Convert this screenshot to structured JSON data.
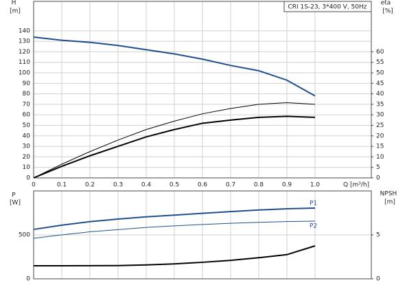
{
  "chart_data": [
    {
      "type": "line",
      "title": "CRI 1S-23, 3*400 V, 50Hz",
      "y_label": "H",
      "y_unit": "[m]",
      "y2_label": "eta",
      "y2_unit": "[%]",
      "x_label": "Q [m³/h]",
      "x": [
        0,
        0.1,
        0.2,
        0.3,
        0.4,
        0.5,
        0.6,
        0.7,
        0.8,
        0.9,
        1.0
      ],
      "xlim": [
        0,
        1.2
      ],
      "xticks": [
        0,
        0.1,
        0.2,
        0.3,
        0.4,
        0.5,
        0.6,
        0.7,
        0.8,
        0.9,
        {
          "value": 1,
          "label": "1.0"
        }
      ],
      "ylim": [
        0,
        168
      ],
      "yticks": [
        0,
        10,
        20,
        30,
        40,
        50,
        60,
        70,
        80,
        90,
        100,
        110,
        120,
        130,
        140
      ],
      "y2lim": [
        0,
        84
      ],
      "y2ticks": [
        0,
        5,
        10,
        15,
        20,
        25,
        30,
        35,
        40,
        45,
        50,
        55,
        60
      ],
      "grid": true,
      "series": [
        {
          "color": "#1f4e8c",
          "width": 2,
          "values": [
            134,
            131,
            129,
            126,
            122,
            118,
            113,
            107,
            102,
            93,
            78
          ]
        },
        {
          "color": "#000000",
          "width": 1,
          "axis": "y2",
          "values": [
            0,
            6.5,
            12.5,
            18,
            23,
            27,
            30.5,
            33,
            35,
            35.8,
            35
          ]
        },
        {
          "color": "#000000",
          "width": 2,
          "axis": "y2",
          "values": [
            0,
            5.5,
            10.5,
            15,
            19.5,
            23,
            26,
            27.5,
            28.8,
            29.3,
            28.8
          ]
        }
      ]
    },
    {
      "type": "line",
      "y_label": "P",
      "y_unit": "[W]",
      "y2_label": "NPSH",
      "y2_unit": "[m]",
      "x": [
        0,
        0.1,
        0.2,
        0.3,
        0.4,
        0.5,
        0.6,
        0.7,
        0.8,
        0.9,
        1.0
      ],
      "xlim": [
        0,
        1.2
      ],
      "xticks": [
        0,
        0.1,
        0.2,
        0.3,
        0.4,
        0.5,
        0.6,
        0.7,
        0.8,
        0.9,
        1
      ],
      "ylim": [
        0,
        1000
      ],
      "yticks": [
        0,
        500
      ],
      "y2lim": [
        0,
        10
      ],
      "y2ticks": [
        0,
        5
      ],
      "grid": true,
      "series": [
        {
          "name": "P1",
          "color": "#1f4e8c",
          "width": 2,
          "values": [
            562,
            610,
            650,
            680,
            705,
            725,
            745,
            765,
            783,
            797,
            805
          ]
        },
        {
          "name": "P2",
          "color": "#1f4e8c",
          "width": 1,
          "values": [
            461,
            500,
            535,
            560,
            585,
            603,
            618,
            632,
            643,
            651,
            656
          ]
        },
        {
          "color": "#000000",
          "width": 2,
          "axis": "y2",
          "values": [
            1.48,
            1.48,
            1.49,
            1.5,
            1.58,
            1.7,
            1.88,
            2.1,
            2.4,
            2.75,
            3.75
          ]
        }
      ]
    }
  ]
}
